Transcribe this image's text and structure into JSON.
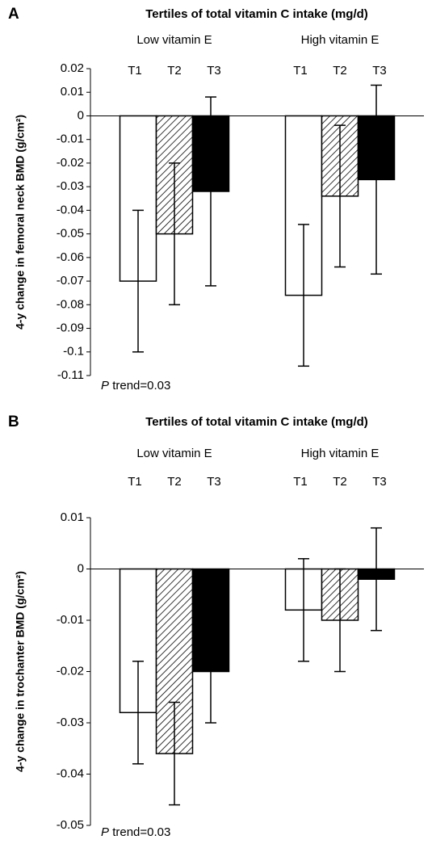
{
  "chart_data": [
    {
      "type": "bar",
      "panel": "A",
      "title": "Tertiles of total vitamin C intake (mg/d)",
      "y_label": "4-y change in femoral neck BMD (g/cm²)",
      "categories": [
        "Low vitamin E",
        "High vitamin E"
      ],
      "series": [
        {
          "name": "T1",
          "color": "#ffffff",
          "hatch": false,
          "values": [
            -0.07,
            -0.076
          ],
          "errors": [
            0.03,
            0.03
          ]
        },
        {
          "name": "T2",
          "color": "#ffffff",
          "hatch": true,
          "values": [
            -0.05,
            -0.034
          ],
          "errors": [
            0.03,
            0.03
          ]
        },
        {
          "name": "T3",
          "color": "#000000",
          "hatch": false,
          "values": [
            -0.032,
            -0.027
          ],
          "errors": [
            0.04,
            0.04
          ]
        }
      ],
      "ylim": [
        -0.11,
        0.02
      ],
      "yticks": [
        0.02,
        0.01,
        0,
        -0.01,
        -0.02,
        -0.03,
        -0.04,
        -0.05,
        -0.06,
        -0.07,
        -0.08,
        -0.09,
        -0.1,
        -0.11
      ],
      "annotation": [
        "P",
        "trend=0.03"
      ]
    },
    {
      "type": "bar",
      "panel": "B",
      "title": "Tertiles of total vitamin C intake (mg/d)",
      "y_label": "4-y change in trochanter BMD (g/cm²)",
      "categories": [
        "Low vitamin E",
        "High vitamin E"
      ],
      "series": [
        {
          "name": "T1",
          "color": "#ffffff",
          "hatch": false,
          "values": [
            -0.028,
            -0.008
          ],
          "errors": [
            0.01,
            0.01
          ]
        },
        {
          "name": "T2",
          "color": "#ffffff",
          "hatch": true,
          "values": [
            -0.036,
            -0.01
          ],
          "errors": [
            0.01,
            0.01
          ]
        },
        {
          "name": "T3",
          "color": "#000000",
          "hatch": false,
          "values": [
            -0.02,
            -0.002
          ],
          "errors": [
            0.01,
            0.01
          ]
        }
      ],
      "ylim": [
        -0.05,
        0.01
      ],
      "yticks": [
        0.01,
        0,
        -0.01,
        -0.02,
        -0.03,
        -0.04,
        -0.05
      ],
      "annotation": [
        "P",
        "trend=0.03"
      ]
    }
  ]
}
